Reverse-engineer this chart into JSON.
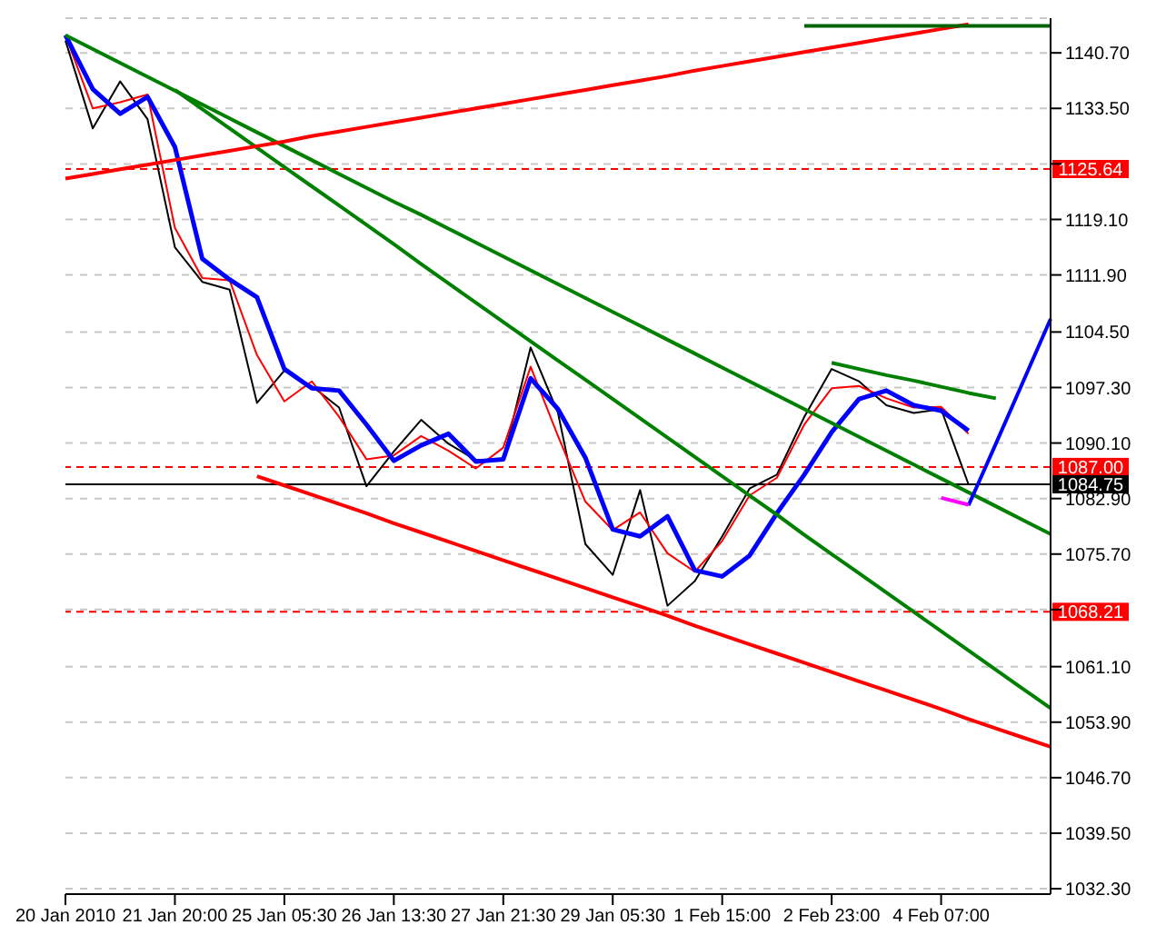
{
  "chart_data": {
    "type": "line",
    "marker": "none",
    "line_style": "solid",
    "grid": "y",
    "legend": false,
    "categories": [
      "20 Jan 2010",
      null,
      null,
      null,
      "21 Jan 20:00",
      null,
      null,
      null,
      "25 Jan 05:30",
      null,
      null,
      null,
      "26 Jan 13:30",
      null,
      null,
      null,
      "27 Jan 21:30",
      null,
      null,
      null,
      "29 Jan 05:30",
      null,
      null,
      null,
      "1 Feb 15:00",
      null,
      null,
      null,
      "2 Feb 23:00",
      null,
      null,
      null,
      "4 Feb 07:00",
      null,
      null,
      null,
      null
    ],
    "ylim": [
      1031.6,
      1145.2
    ],
    "yticks": [
      {
        "value": 1140.7,
        "label": "1140.70"
      },
      {
        "value": 1133.5,
        "label": "1133.50"
      },
      {
        "value": 1126.3,
        "label": null
      },
      {
        "value": 1119.1,
        "label": "1119.10"
      },
      {
        "value": 1111.9,
        "label": "1111.90"
      },
      {
        "value": 1104.5,
        "label": "1104.50"
      },
      {
        "value": 1097.3,
        "label": "1097.30"
      },
      {
        "value": 1090.1,
        "label": "1090.10"
      },
      {
        "value": 1082.9,
        "label": "1082.90"
      },
      {
        "value": 1075.7,
        "label": "1075.70"
      },
      {
        "value": 1068.5,
        "label": null
      },
      {
        "value": 1061.1,
        "label": "1061.10"
      },
      {
        "value": 1053.9,
        "label": "1053.90"
      },
      {
        "value": 1046.7,
        "label": "1046.70"
      },
      {
        "value": 1039.5,
        "label": "1039.50"
      },
      {
        "value": 1032.3,
        "label": "1032.30"
      }
    ],
    "series": [
      {
        "color": "#000000",
        "values": [
          1142.3,
          1130.9,
          1137.0,
          1132.1,
          1115.5,
          1111.0,
          1110.0,
          1095.3,
          1099.5,
          1097.5,
          1094.7,
          1084.5,
          1089.0,
          1093.1,
          1090.0,
          1087.9,
          1088.0,
          1102.5,
          1094.0,
          1077.0,
          1073.0,
          1084.0,
          1069.0,
          1072.2,
          1078.0,
          1084.2,
          1086.0,
          1093.5,
          1099.7,
          1098.1,
          1095.0,
          1094.0,
          1094.5,
          1084.75,
          null,
          null,
          null
        ]
      },
      {
        "color": "#ff0000",
        "values": [
          1143.0,
          1133.5,
          1134.3,
          1135.3,
          1118.0,
          1111.5,
          1111.2,
          1101.5,
          1095.5,
          1098.1,
          1093.5,
          1088.0,
          1088.5,
          1091.0,
          1089.1,
          1086.8,
          1089.5,
          1100.0,
          1091.0,
          1082.5,
          1078.8,
          1081.1,
          1075.8,
          1073.4,
          1077.4,
          1083.3,
          1085.6,
          1092.5,
          1097.2,
          1097.5,
          1095.9,
          1094.7,
          1094.8,
          1091.3,
          null,
          null,
          null
        ]
      },
      {
        "color": "#0000ff",
        "values": [
          1143.0,
          1136.0,
          1132.8,
          1135.0,
          1128.5,
          1114.0,
          1111.3,
          1109.0,
          1099.7,
          1097.2,
          1096.9,
          1092.5,
          1087.8,
          1089.8,
          1091.3,
          1087.7,
          1088.0,
          1098.5,
          1094.5,
          1088.2,
          1078.9,
          1078.0,
          1080.6,
          1073.6,
          1072.8,
          1075.5,
          1081.0,
          1086.0,
          1091.5,
          1095.8,
          1096.9,
          1095.0,
          1094.3,
          1091.7,
          null,
          null,
          null
        ]
      },
      {
        "color": "#008000",
        "values": [
          1143.0,
          1141.2,
          1139.4,
          1137.6,
          1135.8,
          1134.0,
          1132.2,
          1130.4,
          1128.6,
          1126.8,
          1125.0,
          1123.2,
          1121.4,
          1119.7,
          1117.9,
          1116.1,
          1114.3,
          1112.5,
          1110.7,
          1108.9,
          1107.1,
          1105.3,
          1103.5,
          1101.7,
          1099.9,
          1098.1,
          1096.3,
          1094.5,
          1092.7,
          1090.9,
          1089.1,
          1087.3,
          1085.5,
          1083.7,
          1081.9,
          1080.1,
          1078.3
        ]
      },
      {
        "color": "#008000",
        "values": [
          null,
          null,
          null,
          null,
          1135.9,
          1133.4,
          1130.9,
          1128.4,
          1125.9,
          1123.4,
          1120.9,
          1118.4,
          1115.9,
          1113.3,
          1110.8,
          1108.3,
          1105.8,
          1103.3,
          1100.8,
          1098.3,
          1095.8,
          1093.3,
          1090.8,
          1088.3,
          1085.8,
          1083.3,
          1080.8,
          1078.2,
          1075.7,
          1073.2,
          1070.7,
          1068.2,
          1065.7,
          1063.2,
          1060.7,
          1058.2,
          1055.7
        ]
      },
      {
        "color": "#ff0000",
        "values": [
          1124.4,
          1125.0,
          1125.6,
          1126.2,
          1126.8,
          1127.4,
          1128.0,
          1128.6,
          1129.2,
          1129.9,
          1130.5,
          1131.1,
          1131.7,
          1132.3,
          1132.9,
          1133.5,
          1134.1,
          1134.7,
          1135.3,
          1135.9,
          1136.5,
          1137.1,
          1137.7,
          1138.4,
          1139.0,
          1139.6,
          1140.2,
          1140.8,
          1141.4,
          1142.0,
          1142.6,
          1143.2,
          1143.8,
          1144.4,
          null,
          null,
          null
        ]
      },
      {
        "color": "#006400",
        "values": [
          null,
          null,
          null,
          null,
          null,
          null,
          null,
          null,
          null,
          null,
          null,
          null,
          null,
          null,
          null,
          null,
          null,
          null,
          null,
          null,
          null,
          null,
          null,
          null,
          null,
          null,
          null,
          1144.2,
          1144.2,
          1144.2,
          1144.2,
          1144.2,
          1144.2,
          1144.2,
          1144.2,
          1144.2,
          1144.2
        ]
      },
      {
        "color": "#008000",
        "values": [
          null,
          null,
          null,
          null,
          null,
          null,
          null,
          null,
          null,
          null,
          null,
          null,
          null,
          null,
          null,
          null,
          null,
          null,
          null,
          null,
          null,
          null,
          null,
          null,
          null,
          null,
          null,
          null,
          1100.5,
          1099.7,
          1098.9,
          1098.2,
          1097.4,
          1096.6,
          1095.9,
          null,
          null
        ]
      },
      {
        "color": "#ff0000",
        "values": [
          null,
          null,
          null,
          null,
          null,
          null,
          null,
          1085.8,
          1084.6,
          1083.4,
          1082.2,
          1081.0,
          1079.7,
          1078.5,
          1077.3,
          1076.1,
          1074.9,
          1073.7,
          1072.5,
          1071.3,
          1070.1,
          1068.9,
          1067.7,
          1066.4,
          1065.2,
          1064.0,
          1062.8,
          1061.6,
          1060.4,
          1059.2,
          1058.0,
          1056.8,
          1055.6,
          1054.3,
          1053.1,
          1051.9,
          1050.7
        ]
      },
      {
        "color": "#0000ff",
        "values": [
          null,
          null,
          null,
          null,
          null,
          null,
          null,
          null,
          null,
          null,
          null,
          null,
          null,
          null,
          null,
          null,
          null,
          null,
          null,
          null,
          null,
          null,
          null,
          null,
          null,
          null,
          null,
          null,
          null,
          null,
          null,
          null,
          null,
          1082.0,
          1090.0,
          1098.1,
          1106.2
        ]
      },
      {
        "color": "#ff00ff",
        "values": [
          null,
          null,
          null,
          null,
          null,
          null,
          null,
          null,
          null,
          null,
          null,
          null,
          null,
          null,
          null,
          null,
          null,
          null,
          null,
          null,
          null,
          null,
          null,
          null,
          null,
          null,
          null,
          null,
          null,
          null,
          null,
          null,
          1083.0,
          1082.1,
          null,
          null,
          null
        ]
      }
    ],
    "ref_lines": [
      {
        "axis": "y",
        "value": 1125.64,
        "label": "1125.64",
        "color": "#ff0000",
        "line_style": "dashed"
      },
      {
        "axis": "y",
        "value": 1087.0,
        "label": "1087.00",
        "color": "#ff0000",
        "line_style": "dashed"
      },
      {
        "axis": "y",
        "value": 1084.75,
        "label": "1084.75",
        "color": "#000000",
        "line_style": "solid"
      },
      {
        "axis": "y",
        "value": 1068.21,
        "label": "1068.21",
        "color": "#ff0000",
        "line_style": "dashed"
      }
    ]
  }
}
